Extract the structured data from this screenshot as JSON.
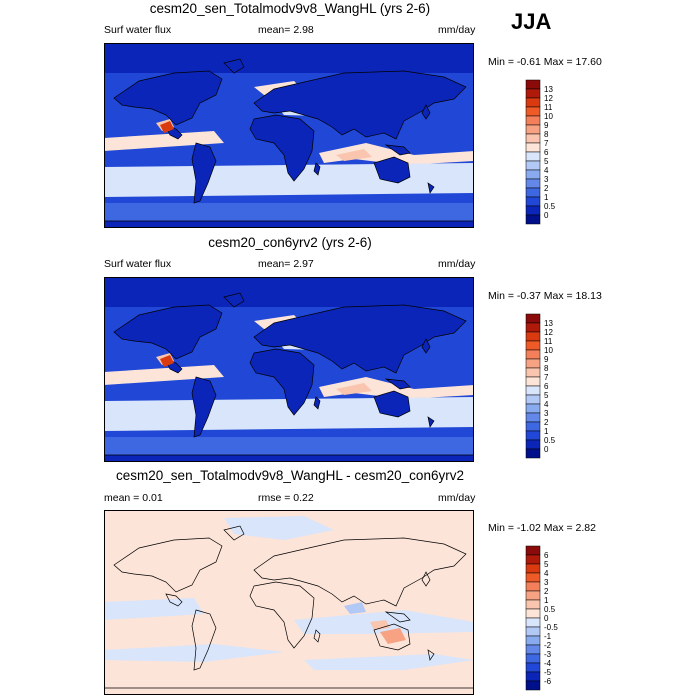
{
  "season": "JJA",
  "panels": [
    {
      "title": "cesm20_sen_Totalmodv9v8_WangHL (yrs 2-6)",
      "left_label": "Surf water flux",
      "center_label": "mean=   2.98",
      "units": "mm/day",
      "minmax": "Min =  -0.61 Max =  17.60",
      "colorbar": {
        "labels": [
          "13",
          "12",
          "11",
          "10",
          "9",
          "8",
          "7",
          "6",
          "5",
          "4",
          "3",
          "2",
          "1",
          "0.5",
          "0"
        ],
        "colors": [
          "#8b0a0a",
          "#b01a0a",
          "#d93a10",
          "#ee5a28",
          "#f3805a",
          "#f6a283",
          "#fac5ae",
          "#fde4d8",
          "#d8e5fb",
          "#b2c9f6",
          "#8aaaf0",
          "#6388ea",
          "#3e67e2",
          "#2047d6",
          "#0b25b8",
          "#00108a"
        ]
      },
      "chart_data": {
        "type": "heatmap",
        "field": "Surf water flux",
        "units": "mm/day",
        "mean": 2.98,
        "min": -0.61,
        "max": 17.6
      }
    },
    {
      "title": "cesm20_con6yrv2 (yrs 2-6)",
      "left_label": "Surf water flux",
      "center_label": "mean=   2.97",
      "units": "mm/day",
      "minmax": "Min =  -0.37 Max =  18.13",
      "colorbar": {
        "labels": [
          "13",
          "12",
          "11",
          "10",
          "9",
          "8",
          "7",
          "6",
          "5",
          "4",
          "3",
          "2",
          "1",
          "0.5",
          "0"
        ],
        "colors": [
          "#8b0a0a",
          "#b01a0a",
          "#d93a10",
          "#ee5a28",
          "#f3805a",
          "#f6a283",
          "#fac5ae",
          "#fde4d8",
          "#d8e5fb",
          "#b2c9f6",
          "#8aaaf0",
          "#6388ea",
          "#3e67e2",
          "#2047d6",
          "#0b25b8",
          "#00108a"
        ]
      },
      "chart_data": {
        "type": "heatmap",
        "field": "Surf water flux",
        "units": "mm/day",
        "mean": 2.97,
        "min": -0.37,
        "max": 18.13
      }
    },
    {
      "title": "cesm20_sen_Totalmodv9v8_WangHL - cesm20_con6yrv2",
      "left_label": "mean =   0.01",
      "center_label": "rmse =   0.22",
      "units": "mm/day",
      "minmax": "Min =  -1.02 Max =   2.82",
      "colorbar": {
        "labels": [
          "6",
          "5",
          "4",
          "3",
          "2",
          "1",
          "0.5",
          "0",
          "-0.5",
          "-1",
          "-2",
          "-3",
          "-4",
          "-5",
          "-6"
        ],
        "colors": [
          "#8b0a0a",
          "#b01a0a",
          "#d93a10",
          "#ee5a28",
          "#f3805a",
          "#f6a283",
          "#fac5ae",
          "#fde4d8",
          "#d8e5fb",
          "#b2c9f6",
          "#8aaaf0",
          "#6388ea",
          "#3e67e2",
          "#2047d6",
          "#0b25b8",
          "#00108a"
        ]
      },
      "chart_data": {
        "type": "heatmap",
        "field": "difference",
        "units": "mm/day",
        "mean": 0.01,
        "rmse": 0.22,
        "min": -1.02,
        "max": 2.82
      }
    }
  ]
}
